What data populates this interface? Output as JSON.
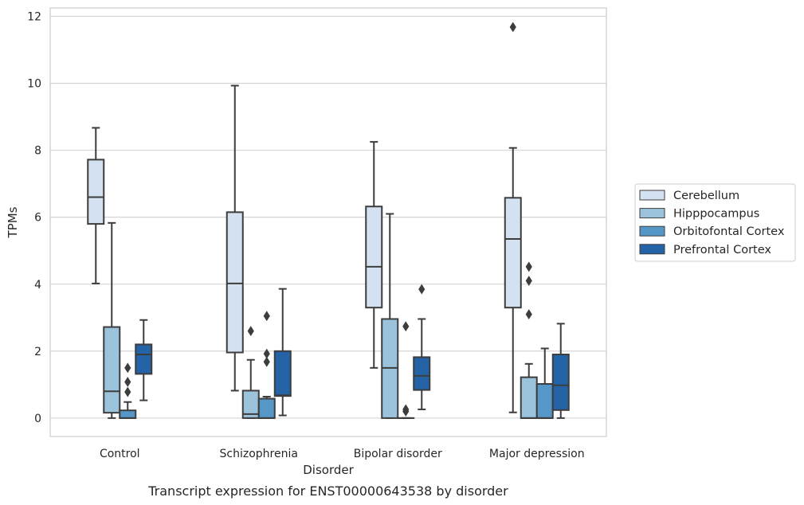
{
  "chart_data": {
    "type": "box",
    "title": "",
    "caption": "Transcript expression for ENST00000643538 by disorder",
    "xlabel": "Disorder",
    "ylabel": "TPMs",
    "ylim": [
      -0.55,
      12.25
    ],
    "yticks": [
      0,
      2,
      4,
      6,
      8,
      10,
      12
    ],
    "grid": true,
    "legend_position": "right",
    "categories": [
      "Control",
      "Schizophrenia",
      "Bipolar disorder",
      "Major depression"
    ],
    "series": [
      {
        "name": "Cerebellum",
        "color": "#d3e1f0",
        "boxes": [
          {
            "whisker_low": 4.02,
            "q1": 5.8,
            "median": 6.6,
            "q3": 7.72,
            "whisker_high": 8.67,
            "outliers": []
          },
          {
            "whisker_low": 0.82,
            "q1": 1.96,
            "median": 4.02,
            "q3": 6.15,
            "whisker_high": 9.93,
            "outliers": []
          },
          {
            "whisker_low": 1.5,
            "q1": 3.3,
            "median": 4.52,
            "q3": 6.32,
            "whisker_high": 8.25,
            "outliers": []
          },
          {
            "whisker_low": 0.17,
            "q1": 3.3,
            "median": 5.35,
            "q3": 6.58,
            "whisker_high": 8.07,
            "outliers": [
              11.68
            ]
          }
        ]
      },
      {
        "name": "Hipppocampus",
        "color": "#9cc3dc",
        "boxes": [
          {
            "whisker_low": 0.0,
            "q1": 0.16,
            "median": 0.8,
            "q3": 2.72,
            "whisker_high": 5.83,
            "outliers": []
          },
          {
            "whisker_low": 0.0,
            "q1": 0.0,
            "median": 0.12,
            "q3": 0.82,
            "whisker_high": 1.74,
            "outliers": [
              2.6
            ]
          },
          {
            "whisker_low": 0.0,
            "q1": 0.0,
            "median": 1.5,
            "q3": 2.96,
            "whisker_high": 6.1,
            "outliers": []
          },
          {
            "whisker_low": 0.0,
            "q1": 0.0,
            "median": 0.0,
            "q3": 1.22,
            "whisker_high": 1.62,
            "outliers": [
              3.1,
              4.1,
              4.52
            ]
          }
        ]
      },
      {
        "name": "Orbitofontal Cortex",
        "color": "#5597c7",
        "boxes": [
          {
            "whisker_low": 0.0,
            "q1": 0.0,
            "median": 0.0,
            "q3": 0.23,
            "whisker_high": 0.48,
            "outliers": [
              0.78,
              1.08,
              1.5
            ]
          },
          {
            "whisker_low": 0.0,
            "q1": 0.0,
            "median": 0.0,
            "q3": 0.58,
            "whisker_high": 0.64,
            "outliers": [
              1.68,
              1.92,
              3.05
            ]
          },
          {
            "whisker_low": 0.0,
            "q1": 0.0,
            "median": 0.0,
            "q3": 0.0,
            "whisker_high": 0.0,
            "outliers": [
              0.2,
              0.26,
              2.74
            ]
          },
          {
            "whisker_low": 0.0,
            "q1": 0.0,
            "median": 0.0,
            "q3": 1.02,
            "whisker_high": 2.08,
            "outliers": []
          }
        ]
      },
      {
        "name": "Prefrontal Cortex",
        "color": "#2463a6",
        "boxes": [
          {
            "whisker_low": 0.53,
            "q1": 1.32,
            "median": 1.9,
            "q3": 2.2,
            "whisker_high": 2.93,
            "outliers": []
          },
          {
            "whisker_low": 0.08,
            "q1": 0.66,
            "median": 0.68,
            "q3": 2.0,
            "whisker_high": 3.86,
            "outliers": []
          },
          {
            "whisker_low": 0.26,
            "q1": 0.84,
            "median": 1.26,
            "q3": 1.82,
            "whisker_high": 2.96,
            "outliers": [
              3.85
            ]
          },
          {
            "whisker_low": 0.0,
            "q1": 0.24,
            "median": 0.98,
            "q3": 1.9,
            "whisker_high": 2.82,
            "outliers": []
          }
        ]
      }
    ]
  }
}
